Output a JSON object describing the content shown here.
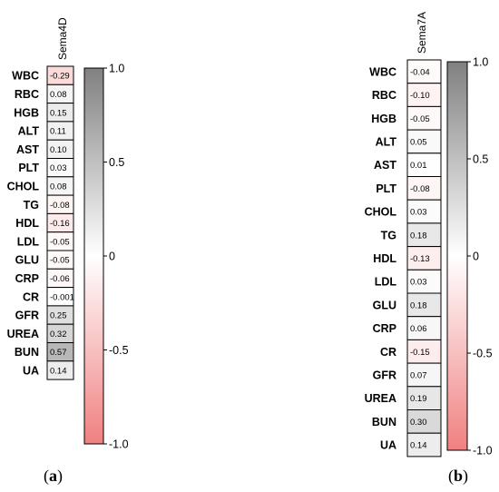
{
  "chart_data": [
    {
      "type": "heatmap",
      "panel_label": [
        "(",
        "a",
        ")"
      ],
      "column": "Sema4D",
      "rows": [
        "WBC",
        "RBC",
        "HGB",
        "ALT",
        "AST",
        "PLT",
        "CHOL",
        "TG",
        "HDL",
        "LDL",
        "GLU",
        "CRP",
        "CR",
        "GFR",
        "UREA",
        "BUN",
        "UA"
      ],
      "values": [
        -0.29,
        0.08,
        0.15,
        0.11,
        0.1,
        0.03,
        0.08,
        -0.08,
        -0.16,
        -0.05,
        -0.05,
        -0.06,
        -0.001,
        0.25,
        0.32,
        0.57,
        0.14
      ],
      "value_labels": [
        "-0.29",
        "0.08",
        "0.15",
        "0.11",
        "0.10",
        "0.03",
        "0.08",
        "-0.08",
        "-0.16",
        "-0.05",
        "-0.05",
        "-0.06",
        "-0.001",
        "0.25",
        "0.32",
        "0.57",
        "0.14"
      ],
      "colorbar": {
        "range": [
          -1.0,
          1.0
        ],
        "ticks": [
          "1.0",
          "0.5",
          "0",
          "-0.5",
          "-1.0"
        ],
        "tick_values": [
          1.0,
          0.5,
          0,
          -0.5,
          -1.0
        ]
      }
    },
    {
      "type": "heatmap",
      "panel_label": [
        "(",
        "b",
        ")"
      ],
      "column": "Sema7A",
      "rows": [
        "WBC",
        "RBC",
        "HGB",
        "ALT",
        "AST",
        "PLT",
        "CHOL",
        "TG",
        "HDL",
        "LDL",
        "GLU",
        "CRP",
        "CR",
        "GFR",
        "UREA",
        "BUN",
        "UA"
      ],
      "values": [
        -0.04,
        -0.1,
        -0.05,
        0.05,
        0.01,
        -0.08,
        0.03,
        0.18,
        -0.13,
        0.03,
        0.18,
        0.06,
        -0.15,
        0.07,
        0.19,
        0.3,
        0.14
      ],
      "value_labels": [
        "-0.04",
        "-0.10",
        "-0.05",
        "0.05",
        "0.01",
        "-0.08",
        "0.03",
        "0.18",
        "-0.13",
        "0.03",
        "0.18",
        "0.06",
        "-0.15",
        "0.07",
        "0.19",
        "0.30",
        "0.14"
      ],
      "colorbar": {
        "range": [
          -1.0,
          1.0
        ],
        "ticks": [
          "1.0",
          "0.5",
          "0",
          "-0.5",
          "-1.0"
        ],
        "tick_values": [
          1.0,
          0.5,
          0,
          -0.5,
          -1.0
        ]
      }
    }
  ],
  "colors": {
    "positive": "#808080",
    "neutral": "#ffffff",
    "negative": "#f08080"
  }
}
